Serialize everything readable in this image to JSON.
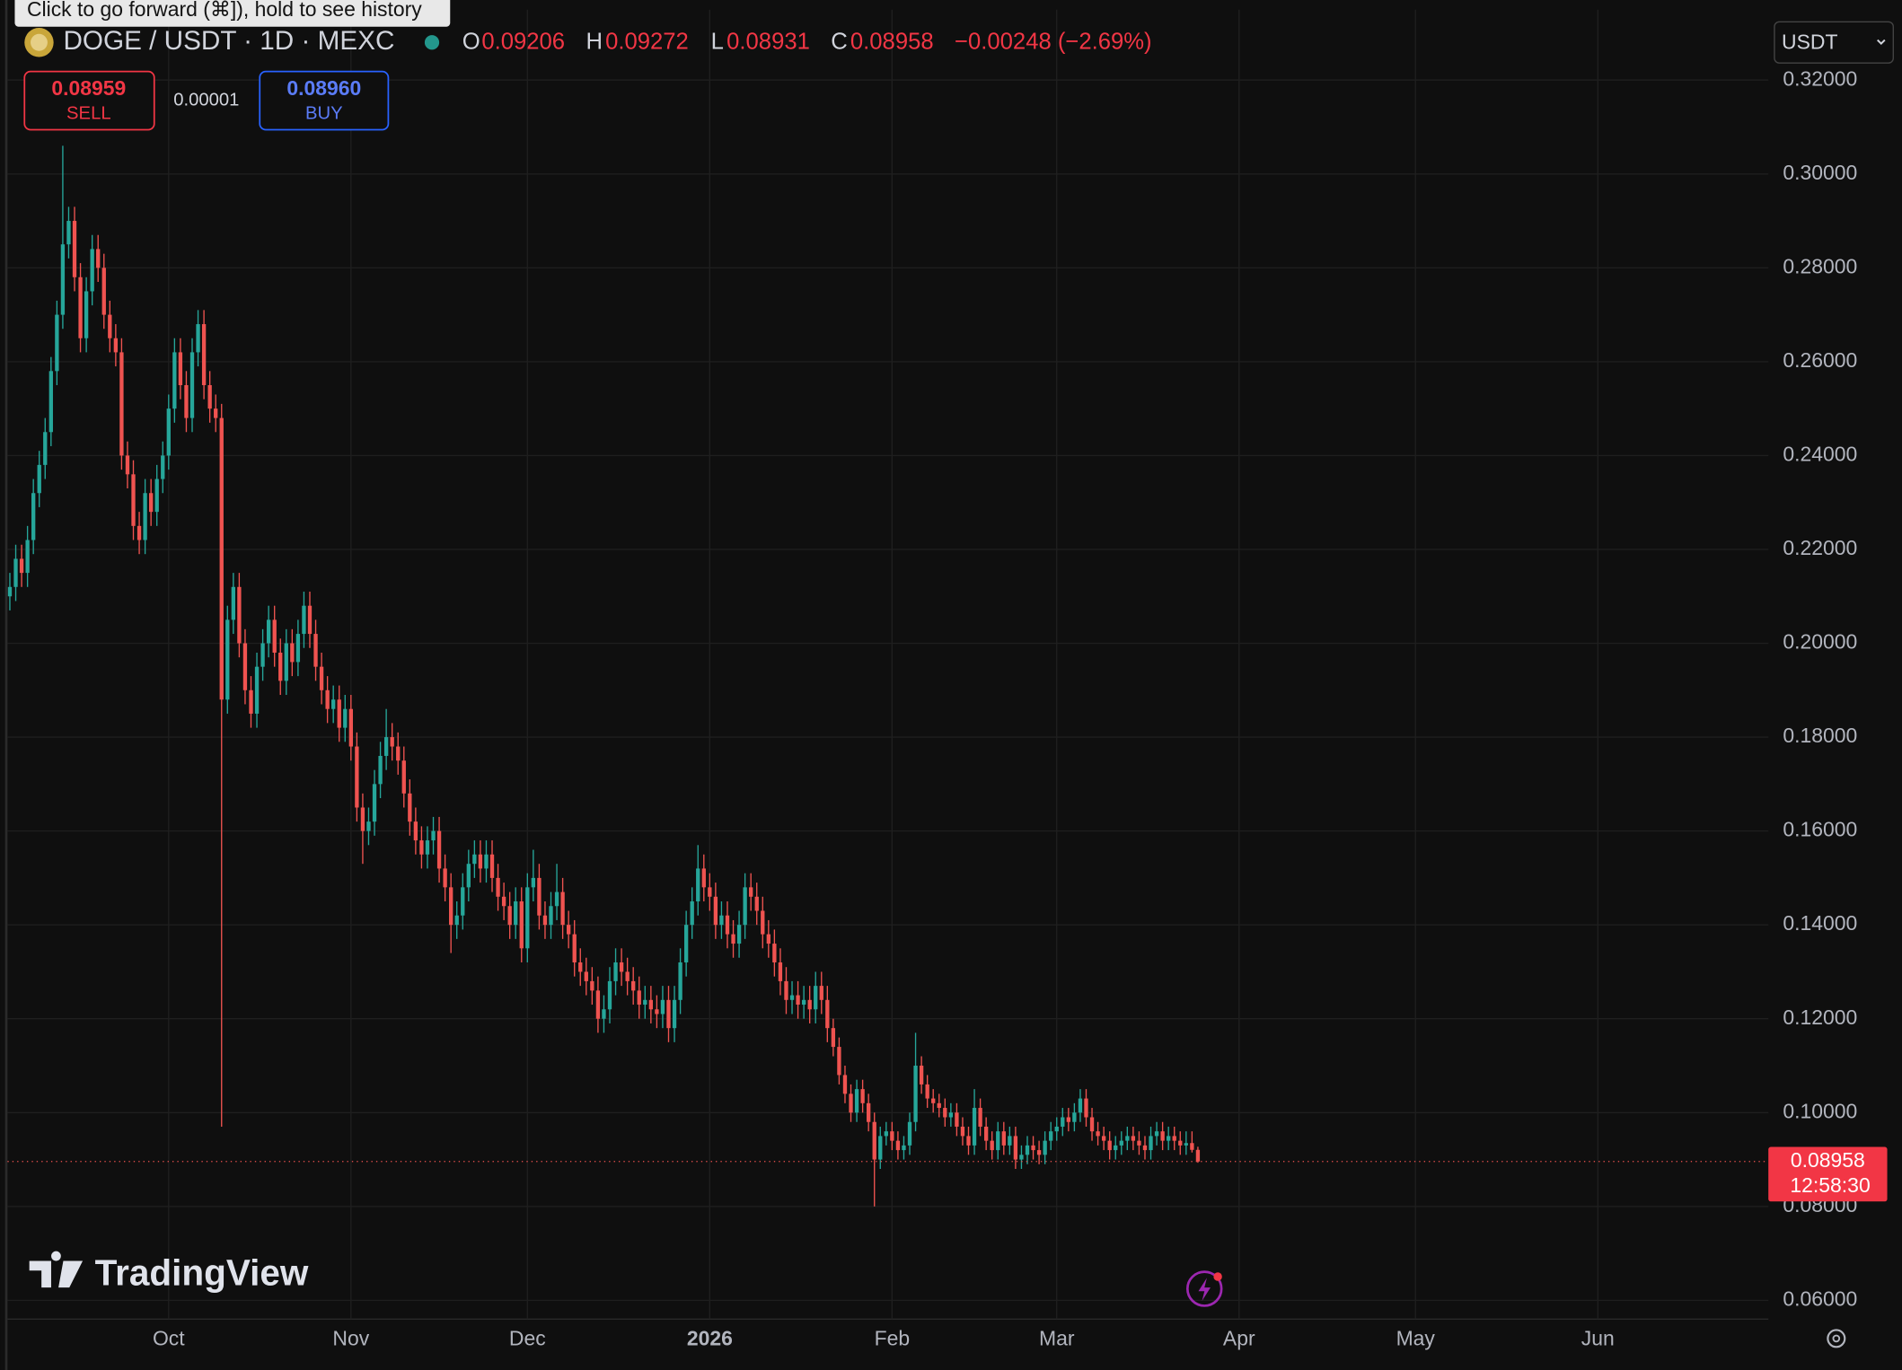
{
  "chart_data": {
    "type": "candlestick",
    "ylim": [
      0.056,
      0.335
    ],
    "yticks": [
      {
        "value": 0.32,
        "label": "0.32000"
      },
      {
        "value": 0.3,
        "label": "0.30000"
      },
      {
        "value": 0.28,
        "label": "0.28000"
      },
      {
        "value": 0.26,
        "label": "0.26000"
      },
      {
        "value": 0.24,
        "label": "0.24000"
      },
      {
        "value": 0.22,
        "label": "0.22000"
      },
      {
        "value": 0.2,
        "label": "0.20000"
      },
      {
        "value": 0.18,
        "label": "0.18000"
      },
      {
        "value": 0.16,
        "label": "0.16000"
      },
      {
        "value": 0.14,
        "label": "0.14000"
      },
      {
        "value": 0.12,
        "label": "0.12000"
      },
      {
        "value": 0.1,
        "label": "0.10000"
      },
      {
        "value": 0.08,
        "label": "0.08000"
      },
      {
        "value": 0.06,
        "label": "0.06000"
      }
    ],
    "xlim": [
      -0.4,
      299
    ],
    "xticks": [
      {
        "value": 27,
        "label": "Oct"
      },
      {
        "value": 58,
        "label": "Nov"
      },
      {
        "value": 88,
        "label": "Dec"
      },
      {
        "value": 119,
        "label": "2026"
      },
      {
        "value": 150,
        "label": "Feb"
      },
      {
        "value": 178,
        "label": "Mar"
      },
      {
        "value": 209,
        "label": "Apr"
      },
      {
        "value": 239,
        "label": "May"
      },
      {
        "value": 270,
        "label": "Jun"
      }
    ],
    "grid": true,
    "colors": {
      "up": "#26a69a",
      "down": "#ef5350"
    },
    "candles": [
      [
        0.21,
        0.215,
        0.207,
        0.212
      ],
      [
        0.212,
        0.221,
        0.209,
        0.218
      ],
      [
        0.218,
        0.221,
        0.212,
        0.215
      ],
      [
        0.215,
        0.225,
        0.212,
        0.222
      ],
      [
        0.222,
        0.235,
        0.219,
        0.232
      ],
      [
        0.232,
        0.241,
        0.229,
        0.238
      ],
      [
        0.238,
        0.248,
        0.235,
        0.245
      ],
      [
        0.245,
        0.261,
        0.242,
        0.258
      ],
      [
        0.258,
        0.273,
        0.255,
        0.27
      ],
      [
        0.27,
        0.306,
        0.267,
        0.285
      ],
      [
        0.285,
        0.293,
        0.282,
        0.29
      ],
      [
        0.29,
        0.293,
        0.275,
        0.278
      ],
      [
        0.278,
        0.281,
        0.262,
        0.265
      ],
      [
        0.265,
        0.278,
        0.262,
        0.275
      ],
      [
        0.275,
        0.287,
        0.272,
        0.284
      ],
      [
        0.284,
        0.287,
        0.277,
        0.28
      ],
      [
        0.28,
        0.283,
        0.267,
        0.27
      ],
      [
        0.27,
        0.273,
        0.262,
        0.265
      ],
      [
        0.265,
        0.268,
        0.259,
        0.262
      ],
      [
        0.262,
        0.265,
        0.237,
        0.24
      ],
      [
        0.24,
        0.243,
        0.233,
        0.236
      ],
      [
        0.236,
        0.239,
        0.222,
        0.225
      ],
      [
        0.225,
        0.228,
        0.219,
        0.222
      ],
      [
        0.222,
        0.235,
        0.219,
        0.232
      ],
      [
        0.232,
        0.235,
        0.225,
        0.228
      ],
      [
        0.228,
        0.238,
        0.225,
        0.235
      ],
      [
        0.235,
        0.243,
        0.232,
        0.24
      ],
      [
        0.24,
        0.253,
        0.237,
        0.25
      ],
      [
        0.25,
        0.265,
        0.247,
        0.262
      ],
      [
        0.262,
        0.265,
        0.252,
        0.255
      ],
      [
        0.255,
        0.258,
        0.245,
        0.248
      ],
      [
        0.248,
        0.265,
        0.245,
        0.262
      ],
      [
        0.262,
        0.271,
        0.259,
        0.268
      ],
      [
        0.268,
        0.271,
        0.252,
        0.255
      ],
      [
        0.255,
        0.258,
        0.247,
        0.25
      ],
      [
        0.25,
        0.253,
        0.245,
        0.248
      ],
      [
        0.248,
        0.251,
        0.097,
        0.188
      ],
      [
        0.188,
        0.208,
        0.185,
        0.205
      ],
      [
        0.205,
        0.215,
        0.202,
        0.212
      ],
      [
        0.212,
        0.215,
        0.197,
        0.2
      ],
      [
        0.2,
        0.203,
        0.187,
        0.19
      ],
      [
        0.19,
        0.193,
        0.182,
        0.185
      ],
      [
        0.185,
        0.198,
        0.182,
        0.195
      ],
      [
        0.195,
        0.203,
        0.192,
        0.2
      ],
      [
        0.2,
        0.208,
        0.197,
        0.205
      ],
      [
        0.205,
        0.208,
        0.195,
        0.198
      ],
      [
        0.198,
        0.201,
        0.189,
        0.192
      ],
      [
        0.192,
        0.203,
        0.189,
        0.2
      ],
      [
        0.2,
        0.203,
        0.193,
        0.196
      ],
      [
        0.196,
        0.205,
        0.193,
        0.202
      ],
      [
        0.202,
        0.211,
        0.199,
        0.208
      ],
      [
        0.208,
        0.211,
        0.199,
        0.202
      ],
      [
        0.202,
        0.205,
        0.192,
        0.195
      ],
      [
        0.195,
        0.198,
        0.187,
        0.19
      ],
      [
        0.19,
        0.193,
        0.183,
        0.186
      ],
      [
        0.186,
        0.191,
        0.183,
        0.188
      ],
      [
        0.188,
        0.191,
        0.179,
        0.182
      ],
      [
        0.182,
        0.189,
        0.179,
        0.186
      ],
      [
        0.186,
        0.189,
        0.175,
        0.178
      ],
      [
        0.178,
        0.181,
        0.162,
        0.165
      ],
      [
        0.165,
        0.168,
        0.153,
        0.16
      ],
      [
        0.16,
        0.165,
        0.157,
        0.162
      ],
      [
        0.162,
        0.173,
        0.159,
        0.17
      ],
      [
        0.17,
        0.179,
        0.167,
        0.176
      ],
      [
        0.176,
        0.186,
        0.173,
        0.18
      ],
      [
        0.18,
        0.183,
        0.175,
        0.178
      ],
      [
        0.178,
        0.181,
        0.172,
        0.175
      ],
      [
        0.175,
        0.178,
        0.165,
        0.168
      ],
      [
        0.168,
        0.171,
        0.159,
        0.162
      ],
      [
        0.162,
        0.165,
        0.155,
        0.158
      ],
      [
        0.158,
        0.161,
        0.152,
        0.155
      ],
      [
        0.155,
        0.161,
        0.152,
        0.158
      ],
      [
        0.158,
        0.163,
        0.155,
        0.16
      ],
      [
        0.16,
        0.163,
        0.149,
        0.152
      ],
      [
        0.152,
        0.155,
        0.145,
        0.148
      ],
      [
        0.148,
        0.151,
        0.134,
        0.14
      ],
      [
        0.14,
        0.145,
        0.137,
        0.142
      ],
      [
        0.142,
        0.151,
        0.139,
        0.148
      ],
      [
        0.148,
        0.156,
        0.145,
        0.153
      ],
      [
        0.153,
        0.158,
        0.15,
        0.155
      ],
      [
        0.155,
        0.158,
        0.149,
        0.152
      ],
      [
        0.152,
        0.158,
        0.149,
        0.155
      ],
      [
        0.155,
        0.158,
        0.147,
        0.15
      ],
      [
        0.15,
        0.153,
        0.143,
        0.146
      ],
      [
        0.146,
        0.149,
        0.141,
        0.144
      ],
      [
        0.144,
        0.147,
        0.137,
        0.14
      ],
      [
        0.14,
        0.148,
        0.137,
        0.145
      ],
      [
        0.145,
        0.148,
        0.132,
        0.135
      ],
      [
        0.135,
        0.151,
        0.132,
        0.148
      ],
      [
        0.148,
        0.156,
        0.145,
        0.15
      ],
      [
        0.15,
        0.153,
        0.139,
        0.142
      ],
      [
        0.142,
        0.145,
        0.137,
        0.14
      ],
      [
        0.14,
        0.147,
        0.137,
        0.144
      ],
      [
        0.144,
        0.153,
        0.141,
        0.147
      ],
      [
        0.147,
        0.15,
        0.137,
        0.14
      ],
      [
        0.14,
        0.143,
        0.135,
        0.138
      ],
      [
        0.138,
        0.141,
        0.129,
        0.132
      ],
      [
        0.132,
        0.135,
        0.127,
        0.13
      ],
      [
        0.13,
        0.133,
        0.125,
        0.128
      ],
      [
        0.128,
        0.131,
        0.123,
        0.126
      ],
      [
        0.126,
        0.129,
        0.117,
        0.12
      ],
      [
        0.12,
        0.125,
        0.117,
        0.122
      ],
      [
        0.122,
        0.131,
        0.119,
        0.128
      ],
      [
        0.128,
        0.135,
        0.125,
        0.132
      ],
      [
        0.132,
        0.135,
        0.127,
        0.13
      ],
      [
        0.13,
        0.133,
        0.125,
        0.128
      ],
      [
        0.128,
        0.131,
        0.123,
        0.126
      ],
      [
        0.126,
        0.129,
        0.12,
        0.123
      ],
      [
        0.123,
        0.127,
        0.12,
        0.124
      ],
      [
        0.124,
        0.127,
        0.119,
        0.122
      ],
      [
        0.122,
        0.125,
        0.118,
        0.121
      ],
      [
        0.121,
        0.127,
        0.118,
        0.124
      ],
      [
        0.124,
        0.127,
        0.115,
        0.118
      ],
      [
        0.118,
        0.127,
        0.115,
        0.124
      ],
      [
        0.124,
        0.135,
        0.121,
        0.132
      ],
      [
        0.132,
        0.143,
        0.129,
        0.14
      ],
      [
        0.14,
        0.148,
        0.137,
        0.145
      ],
      [
        0.145,
        0.157,
        0.142,
        0.152
      ],
      [
        0.152,
        0.155,
        0.145,
        0.148
      ],
      [
        0.148,
        0.151,
        0.143,
        0.146
      ],
      [
        0.146,
        0.149,
        0.137,
        0.14
      ],
      [
        0.14,
        0.145,
        0.137,
        0.142
      ],
      [
        0.142,
        0.145,
        0.135,
        0.138
      ],
      [
        0.138,
        0.141,
        0.133,
        0.136
      ],
      [
        0.136,
        0.143,
        0.133,
        0.14
      ],
      [
        0.14,
        0.151,
        0.137,
        0.148
      ],
      [
        0.148,
        0.151,
        0.143,
        0.146
      ],
      [
        0.146,
        0.149,
        0.14,
        0.143
      ],
      [
        0.143,
        0.146,
        0.135,
        0.138
      ],
      [
        0.138,
        0.141,
        0.133,
        0.136
      ],
      [
        0.136,
        0.139,
        0.129,
        0.132
      ],
      [
        0.132,
        0.135,
        0.125,
        0.128
      ],
      [
        0.128,
        0.131,
        0.121,
        0.124
      ],
      [
        0.124,
        0.128,
        0.121,
        0.125
      ],
      [
        0.125,
        0.128,
        0.12,
        0.123
      ],
      [
        0.123,
        0.127,
        0.12,
        0.124
      ],
      [
        0.124,
        0.127,
        0.119,
        0.122
      ],
      [
        0.122,
        0.13,
        0.119,
        0.127
      ],
      [
        0.127,
        0.13,
        0.121,
        0.124
      ],
      [
        0.124,
        0.127,
        0.115,
        0.118
      ],
      [
        0.118,
        0.12,
        0.112,
        0.114
      ],
      [
        0.114,
        0.116,
        0.106,
        0.108
      ],
      [
        0.108,
        0.11,
        0.102,
        0.104
      ],
      [
        0.104,
        0.106,
        0.098,
        0.1
      ],
      [
        0.1,
        0.107,
        0.098,
        0.105
      ],
      [
        0.105,
        0.107,
        0.1,
        0.102
      ],
      [
        0.102,
        0.104,
        0.096,
        0.098
      ],
      [
        0.098,
        0.1,
        0.08,
        0.09
      ],
      [
        0.09,
        0.097,
        0.088,
        0.095
      ],
      [
        0.095,
        0.098,
        0.093,
        0.096
      ],
      [
        0.096,
        0.098,
        0.092,
        0.094
      ],
      [
        0.094,
        0.096,
        0.09,
        0.092
      ],
      [
        0.092,
        0.095,
        0.09,
        0.093
      ],
      [
        0.093,
        0.1,
        0.091,
        0.098
      ],
      [
        0.098,
        0.117,
        0.096,
        0.11
      ],
      [
        0.11,
        0.112,
        0.104,
        0.106
      ],
      [
        0.106,
        0.108,
        0.101,
        0.103
      ],
      [
        0.103,
        0.105,
        0.1,
        0.102
      ],
      [
        0.102,
        0.104,
        0.099,
        0.101
      ],
      [
        0.101,
        0.103,
        0.097,
        0.099
      ],
      [
        0.099,
        0.102,
        0.097,
        0.1
      ],
      [
        0.1,
        0.102,
        0.095,
        0.097
      ],
      [
        0.097,
        0.099,
        0.093,
        0.095
      ],
      [
        0.095,
        0.097,
        0.091,
        0.093
      ],
      [
        0.093,
        0.105,
        0.091,
        0.101
      ],
      [
        0.101,
        0.103,
        0.095,
        0.097
      ],
      [
        0.097,
        0.099,
        0.092,
        0.094
      ],
      [
        0.094,
        0.096,
        0.09,
        0.092
      ],
      [
        0.092,
        0.098,
        0.09,
        0.096
      ],
      [
        0.096,
        0.098,
        0.091,
        0.093
      ],
      [
        0.093,
        0.097,
        0.091,
        0.095
      ],
      [
        0.095,
        0.097,
        0.088,
        0.09
      ],
      [
        0.09,
        0.093,
        0.088,
        0.091
      ],
      [
        0.091,
        0.095,
        0.089,
        0.093
      ],
      [
        0.093,
        0.095,
        0.09,
        0.092
      ],
      [
        0.092,
        0.094,
        0.089,
        0.091
      ],
      [
        0.091,
        0.096,
        0.089,
        0.094
      ],
      [
        0.094,
        0.098,
        0.092,
        0.096
      ],
      [
        0.096,
        0.099,
        0.094,
        0.097
      ],
      [
        0.097,
        0.101,
        0.095,
        0.099
      ],
      [
        0.099,
        0.101,
        0.096,
        0.098
      ],
      [
        0.098,
        0.102,
        0.096,
        0.1
      ],
      [
        0.1,
        0.105,
        0.098,
        0.103
      ],
      [
        0.103,
        0.105,
        0.097,
        0.099
      ],
      [
        0.099,
        0.101,
        0.094,
        0.096
      ],
      [
        0.096,
        0.098,
        0.093,
        0.095
      ],
      [
        0.095,
        0.097,
        0.092,
        0.094
      ],
      [
        0.094,
        0.096,
        0.09,
        0.092
      ],
      [
        0.092,
        0.095,
        0.09,
        0.093
      ],
      [
        0.093,
        0.096,
        0.091,
        0.094
      ],
      [
        0.094,
        0.097,
        0.092,
        0.095
      ],
      [
        0.095,
        0.097,
        0.092,
        0.094
      ],
      [
        0.094,
        0.096,
        0.091,
        0.093
      ],
      [
        0.093,
        0.095,
        0.09,
        0.092
      ],
      [
        0.092,
        0.097,
        0.09,
        0.095
      ],
      [
        0.095,
        0.098,
        0.093,
        0.096
      ],
      [
        0.096,
        0.098,
        0.092,
        0.094
      ],
      [
        0.094,
        0.097,
        0.092,
        0.095
      ],
      [
        0.095,
        0.097,
        0.092,
        0.094
      ],
      [
        0.094,
        0.096,
        0.091,
        0.093
      ],
      [
        0.093,
        0.096,
        0.091,
        0.0935
      ],
      [
        0.0935,
        0.096,
        0.0915,
        0.09206
      ],
      [
        0.09206,
        0.09272,
        0.08931,
        0.08958
      ]
    ]
  },
  "ui": {
    "tooltip": "Click to go forward (⌘]), hold to see history",
    "symbol": "DOGE / USDT · 1D · MEXC",
    "ohlc_labels": [
      "O",
      "H",
      "L",
      "C"
    ],
    "change": "−0.00248 (−2.69%)",
    "sell": {
      "price": "0.08959",
      "label": "SELL"
    },
    "spread": "0.00001",
    "buy": {
      "price": "0.08960",
      "label": "BUY"
    },
    "currency": "USDT",
    "countdown": "12:58:30",
    "brand": "TradingView"
  }
}
